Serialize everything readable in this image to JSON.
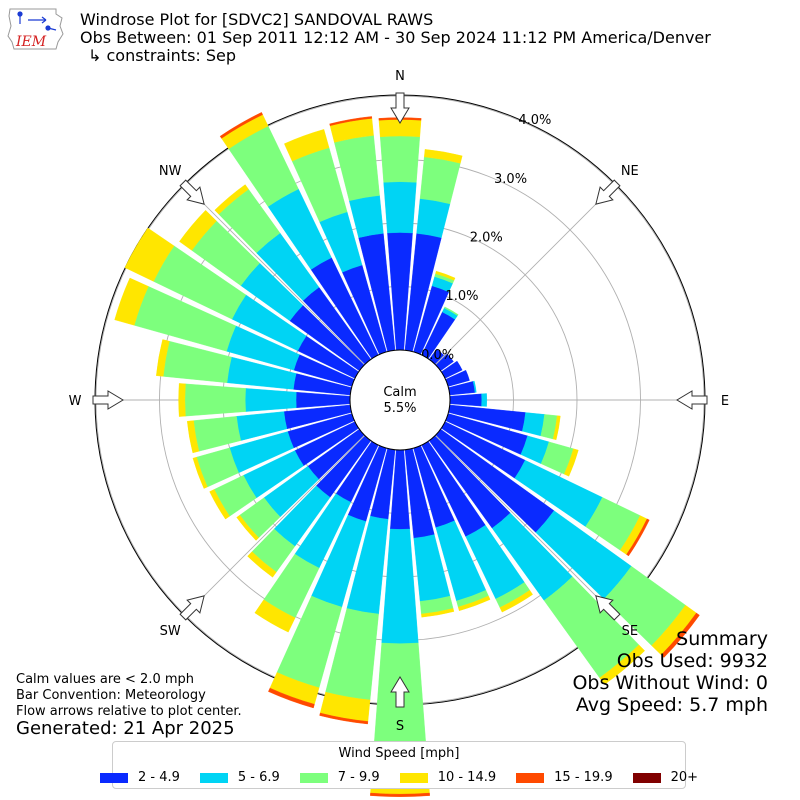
{
  "header": {
    "title": "Windrose Plot for [SDVC2] SANDOVAL RAWS",
    "obs_between": "Obs Between: 01 Sep 2011 12:12 AM - 30 Sep 2024 11:12 PM America/Denver",
    "constraints": "↳ constraints: Sep",
    "logo_text": "IEM"
  },
  "notes": {
    "calm_note": "Calm values are < 2.0 mph",
    "bar_convention": "Bar Convention: Meteorology",
    "flow_arrows": "Flow arrows relative to plot center.",
    "generated": "Generated: 21 Apr 2025"
  },
  "summary": {
    "heading": "Summary",
    "obs_used": "Obs Used: 9932",
    "obs_without_wind": "Obs Without Wind: 0",
    "avg_speed": "Avg Speed: 5.7 mph"
  },
  "legend": {
    "title": "Wind Speed [mph]",
    "items": [
      {
        "label": "2 - 4.9",
        "color": "#0a2aff"
      },
      {
        "label": "5 - 6.9",
        "color": "#00d4f4"
      },
      {
        "label": "7 - 9.9",
        "color": "#7dff7d"
      },
      {
        "label": "10 - 14.9",
        "color": "#ffe600"
      },
      {
        "label": "15 - 19.9",
        "color": "#ff4a00"
      },
      {
        "label": "20+",
        "color": "#800000"
      }
    ]
  },
  "chart_data": {
    "type": "windrose",
    "calm_label": "Calm",
    "calm_value": "5.5%",
    "radial_unit": "%",
    "radial_ticks": [
      "0.0%",
      "1.0%",
      "2.0%",
      "3.0%",
      "4.0%"
    ],
    "radial_max": 4.8,
    "directions": [
      "N",
      "NE",
      "E",
      "SE",
      "S",
      "SW",
      "W",
      "NW"
    ],
    "bins": [
      "2 - 4.9",
      "5 - 6.9",
      "7 - 9.9",
      "10 - 14.9",
      "15 - 19.9",
      "20+"
    ],
    "sectors": [
      {
        "dir": 0,
        "values": [
          1.85,
          0.8,
          0.72,
          0.26,
          0.03,
          0.0
        ]
      },
      {
        "dir": 10,
        "values": [
          1.85,
          0.55,
          0.66,
          0.12,
          0.0,
          0.0
        ]
      },
      {
        "dir": 20,
        "values": [
          1.08,
          0.15,
          0.05,
          0.04,
          0.0,
          0.0
        ]
      },
      {
        "dir": 30,
        "values": [
          0.75,
          0.07,
          0.02,
          0.0,
          0.0,
          0.0
        ]
      },
      {
        "dir": 40,
        "values": [
          0.2,
          0.0,
          0.0,
          0.0,
          0.0,
          0.0
        ]
      },
      {
        "dir": 50,
        "values": [
          0.25,
          0.0,
          0.0,
          0.0,
          0.0,
          0.0
        ]
      },
      {
        "dir": 60,
        "values": [
          0.3,
          0.0,
          0.0,
          0.0,
          0.0,
          0.0
        ]
      },
      {
        "dir": 70,
        "values": [
          0.35,
          0.0,
          0.0,
          0.0,
          0.0,
          0.0
        ]
      },
      {
        "dir": 80,
        "values": [
          0.4,
          0.02,
          0.0,
          0.0,
          0.0,
          0.0
        ]
      },
      {
        "dir": 90,
        "values": [
          0.5,
          0.08,
          0.0,
          0.0,
          0.0,
          0.0
        ]
      },
      {
        "dir": 100,
        "values": [
          1.2,
          0.3,
          0.2,
          0.05,
          0.0,
          0.0
        ]
      },
      {
        "dir": 110,
        "values": [
          1.3,
          0.35,
          0.4,
          0.08,
          0.0,
          0.0
        ]
      },
      {
        "dir": 120,
        "values": [
          1.4,
          1.35,
          0.66,
          0.12,
          0.04,
          0.0
        ]
      },
      {
        "dir": 130,
        "values": [
          2.2,
          1.5,
          1.05,
          0.21,
          0.06,
          0.0
        ]
      },
      {
        "dir": 140,
        "values": [
          1.7,
          1.4,
          1.5,
          0.13,
          0.0,
          0.0
        ]
      },
      {
        "dir": 150,
        "values": [
          1.6,
          1.09,
          0.15,
          0.08,
          0.0,
          0.0
        ]
      },
      {
        "dir": 160,
        "values": [
          1.3,
          1.2,
          0.1,
          0.06,
          0.0,
          0.0
        ]
      },
      {
        "dir": 170,
        "values": [
          1.4,
          1.0,
          0.2,
          0.05,
          0.0,
          0.0
        ]
      },
      {
        "dir": 180,
        "values": [
          1.25,
          1.8,
          1.86,
          0.51,
          0.04,
          0.0
        ]
      },
      {
        "dir": 190,
        "values": [
          1.1,
          1.5,
          1.36,
          0.34,
          0.04,
          0.0
        ]
      },
      {
        "dir": 200,
        "values": [
          1.2,
          1.4,
          1.32,
          0.27,
          0.06,
          0.0
        ]
      },
      {
        "dir": 210,
        "values": [
          1.0,
          1.15,
          0.87,
          0.25,
          0.0,
          0.0
        ]
      },
      {
        "dir": 220,
        "values": [
          1.1,
          0.95,
          0.5,
          0.1,
          0.0,
          0.0
        ]
      },
      {
        "dir": 230,
        "values": [
          1.0,
          0.85,
          0.47,
          0.06,
          0.0,
          0.0
        ]
      },
      {
        "dir": 240,
        "values": [
          1.05,
          0.9,
          0.51,
          0.08,
          0.0,
          0.0
        ]
      },
      {
        "dir": 250,
        "values": [
          1.05,
          0.95,
          0.54,
          0.06,
          0.0,
          0.0
        ]
      },
      {
        "dir": 260,
        "values": [
          1.05,
          0.75,
          0.68,
          0.1,
          0.0,
          0.0
        ]
      },
      {
        "dir": 270,
        "values": [
          0.85,
          0.8,
          0.95,
          0.1,
          0.0,
          0.0
        ]
      },
      {
        "dir": 280,
        "values": [
          0.9,
          1.05,
          1.01,
          0.11,
          0.0,
          0.0
        ]
      },
      {
        "dir": 290,
        "values": [
          0.95,
          1.1,
          1.51,
          0.32,
          0.0,
          0.0
        ]
      },
      {
        "dir": 300,
        "values": [
          1.0,
          1.15,
          1.37,
          0.5,
          0.0,
          0.0
        ]
      },
      {
        "dir": 310,
        "values": [
          1.35,
          0.95,
          0.95,
          0.24,
          0.0,
          0.0
        ]
      },
      {
        "dir": 320,
        "values": [
          1.4,
          1.05,
          0.85,
          0.09,
          0.0,
          0.0
        ]
      },
      {
        "dir": 330,
        "values": [
          1.7,
          1.2,
          1.1,
          0.2,
          0.04,
          0.0
        ]
      },
      {
        "dir": 340,
        "values": [
          1.42,
          0.87,
          1.05,
          0.3,
          0.0,
          0.0
        ]
      },
      {
        "dir": 350,
        "values": [
          1.85,
          0.6,
          0.95,
          0.27,
          0.03,
          0.0
        ]
      }
    ]
  }
}
